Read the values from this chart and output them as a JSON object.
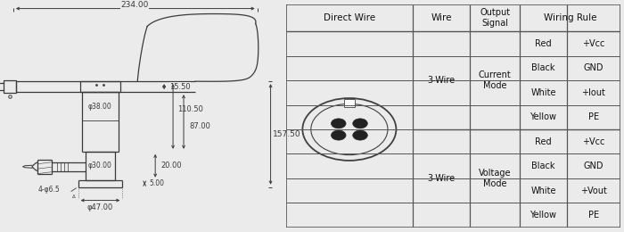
{
  "bg_color": "#ebebeb",
  "line_color": "#3a3a3a",
  "table_bg": "#ffffff",
  "table_line_color": "#555555",
  "dim_color": "#3a3a3a",
  "table": {
    "col_headers": [
      "Direct Wire",
      "Wire",
      "Output\nSignal",
      "Wiring Rule"
    ],
    "colors_col": [
      "Red",
      "Black",
      "White",
      "Yellow",
      "Red",
      "Black",
      "White",
      "Yellow"
    ],
    "values_col": [
      "+Vcc",
      "GND",
      "+Iout",
      "PE",
      "+Vcc",
      "GND",
      "+Vout",
      "PE"
    ],
    "wire1": "3-Wire",
    "wire2": "3-Wire",
    "mode1": "Current\nMode",
    "mode2": "Voltage\nMode"
  }
}
